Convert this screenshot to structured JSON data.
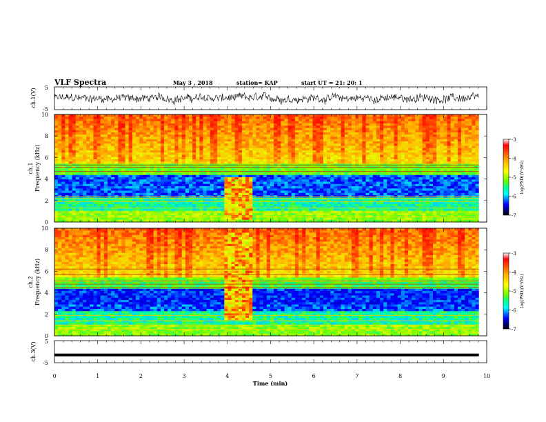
{
  "header": {
    "title": "VLF Spectra",
    "date": "May 3 , 2018",
    "station": "station= KAP",
    "start_ut": "start UT = 21: 20: 1"
  },
  "panels": {
    "ch1_voltage": {
      "ylabel": "ch.1(V)",
      "yticks": [
        "5",
        "-5"
      ]
    },
    "ch1_spectrogram": {
      "ylabel_line1": "ch.1",
      "ylabel_line2": "Frequency (kHz)",
      "yticks": [
        "0",
        "2",
        "4",
        "6",
        "8",
        "10"
      ]
    },
    "ch2_spectrogram": {
      "ylabel_line1": "ch.2",
      "ylabel_line2": "Frequency (kHz)",
      "yticks": [
        "0",
        "2",
        "4",
        "6",
        "8",
        "10"
      ]
    },
    "ch3_voltage": {
      "ylabel": "ch.3(V)",
      "yticks": [
        "5",
        "-5"
      ]
    }
  },
  "colorbar": {
    "label": "log(PSD)(V²/Hz)",
    "ticks": [
      "-3",
      "-4",
      "-5",
      "-6",
      "-7"
    ],
    "colors": [
      "#ffffff",
      "#ff0000",
      "#ffaa00",
      "#ffff00",
      "#88ff00",
      "#00ff88",
      "#00ffff",
      "#0000ff",
      "#000000"
    ]
  },
  "chart_data": [
    {
      "type": "line",
      "name": "ch.1(V)",
      "xlim": [
        0,
        10
      ],
      "ylim": [
        -5,
        5
      ],
      "x_range_data": [
        0,
        9.82
      ],
      "xlabel": "",
      "ylabel": "ch.1(V)"
    },
    {
      "type": "heatmap",
      "name": "ch.1 spectrogram",
      "xlim": [
        0,
        10
      ],
      "ylim": [
        0,
        10
      ],
      "xlabel": "",
      "ylabel": "Frequency (kHz)",
      "zlim": [
        -7,
        -3
      ],
      "zlabel": "log(PSD)(V²/Hz)",
      "features": [
        {
          "t_start": 3.95,
          "t_end": 4.6,
          "f_start": 0.3,
          "f_end": 4.2,
          "desc": "enhanced block"
        }
      ]
    },
    {
      "type": "heatmap",
      "name": "ch.2 spectrogram",
      "xlim": [
        0,
        10
      ],
      "ylim": [
        0,
        10
      ],
      "xlabel": "",
      "ylabel": "Frequency (kHz)",
      "zlim": [
        -7,
        -3
      ],
      "zlabel": "log(PSD)(V²/Hz)",
      "features": [
        {
          "t_start": 3.95,
          "t_end": 4.6,
          "f_start": 1.5,
          "f_end": 9.5,
          "desc": "enhanced block"
        }
      ]
    },
    {
      "type": "line",
      "name": "ch.3(V)",
      "xlim": [
        0,
        10
      ],
      "ylim": [
        -5,
        5
      ],
      "x_range_data": [
        0,
        9.82
      ],
      "y_constant": -1.5,
      "xlabel": "Time (min)",
      "ylabel": "ch.3(V)"
    }
  ],
  "xaxis": {
    "label": "Time (min)",
    "ticks": [
      "0",
      "1",
      "2",
      "3",
      "4",
      "5",
      "6",
      "7",
      "8",
      "9",
      "10"
    ]
  }
}
